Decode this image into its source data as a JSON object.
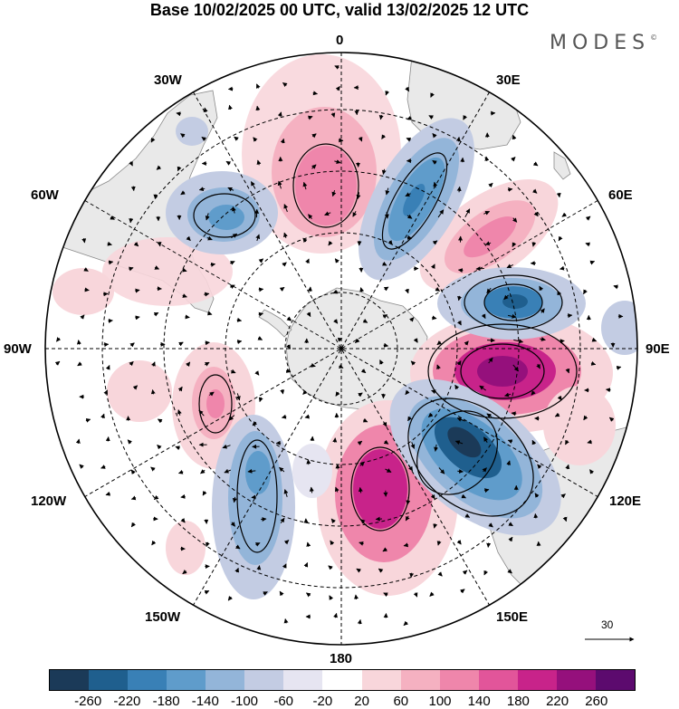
{
  "title": "Base 10/02/2025 00 UTC, valid 13/02/2025 12 UTC",
  "brand": {
    "name": "MODES",
    "mark": "©"
  },
  "longitude_labels": {
    "top": "0",
    "top_right": "30E",
    "right_upper": "60E",
    "right": "90E",
    "right_lower": "120E",
    "bottom_right": "150E",
    "bottom": "180",
    "bottom_left": "150W",
    "left_lower": "120W",
    "left": "90W",
    "left_upper": "60W",
    "top_left": "30W"
  },
  "reference_vector": {
    "label": "30"
  },
  "colorbar": {
    "colors": [
      "#1b3a58",
      "#1f5f8e",
      "#3980b6",
      "#5f9ccb",
      "#93b5d9",
      "#c3cce3",
      "#e6e5f1",
      "#ffffff",
      "#f8d6db",
      "#f5b1c1",
      "#ef86ab",
      "#e2559a",
      "#c8238a",
      "#95107c",
      "#5c0a6e"
    ],
    "tick_labels": [
      "-260",
      "-220",
      "-180",
      "-140",
      "-100",
      "-60",
      "-20",
      "20",
      "60",
      "100",
      "140",
      "180",
      "220",
      "260"
    ]
  },
  "map_colors": {
    "land": "#e9e9e9",
    "coast": "#8a8a8a",
    "negative": "#3d7db4",
    "positive": "#d63b96"
  }
}
